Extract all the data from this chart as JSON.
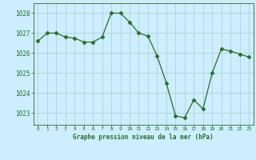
{
  "x": [
    0,
    1,
    2,
    3,
    4,
    5,
    6,
    7,
    8,
    9,
    10,
    11,
    12,
    13,
    14,
    15,
    16,
    17,
    18,
    19,
    20,
    21,
    22,
    23
  ],
  "y": [
    1026.6,
    1027.0,
    1027.0,
    1026.8,
    1026.75,
    1026.55,
    1026.55,
    1026.8,
    1028.0,
    1028.0,
    1027.55,
    1027.0,
    1026.85,
    1025.85,
    1024.5,
    1022.85,
    1022.75,
    1023.65,
    1023.2,
    1025.0,
    1026.2,
    1026.1,
    1025.95,
    1025.8
  ],
  "line_color": "#2d6a2d",
  "marker": "D",
  "marker_size": 2.5,
  "bg_color": "#cceeff",
  "grid_color": "#aacccc",
  "xlabel": "Graphe pression niveau de la mer (hPa)",
  "xlabel_color": "#2d6a2d",
  "tick_color": "#2d6a2d",
  "ylim": [
    1022.4,
    1028.5
  ],
  "yticks": [
    1023,
    1024,
    1025,
    1026,
    1027,
    1028
  ],
  "xlim": [
    -0.5,
    23.5
  ],
  "xticks": [
    0,
    1,
    2,
    3,
    4,
    5,
    6,
    7,
    8,
    9,
    10,
    11,
    12,
    13,
    14,
    15,
    16,
    17,
    18,
    19,
    20,
    21,
    22,
    23
  ]
}
